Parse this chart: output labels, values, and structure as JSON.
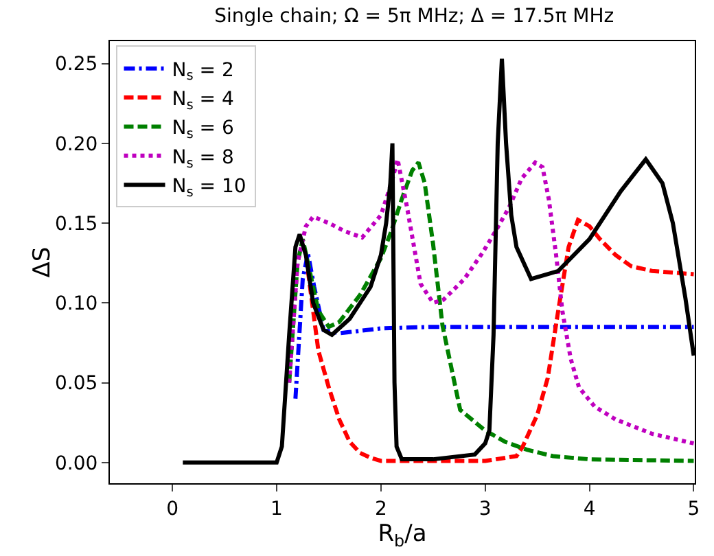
{
  "chart_data": {
    "type": "line",
    "title": "Single chain; Ω = 5π MHz; Δ = 17.5π MHz",
    "xlabel": "R$_{b}$/a",
    "ylabel": "ΔS",
    "xlim": [
      -0.6,
      5.01
    ],
    "xticks": [
      0,
      1,
      2,
      3,
      4,
      5
    ],
    "ylim": [
      -0.013,
      0.264
    ],
    "yticks": [
      {
        "value": 0,
        "label": "0.00"
      },
      {
        "value": 0.05,
        "label": "0.05"
      },
      {
        "value": 0.1,
        "label": "0.10"
      },
      {
        "value": 0.15,
        "label": "0.15"
      },
      {
        "value": 0.2,
        "label": "0.20"
      },
      {
        "value": 0.25,
        "label": "0.25"
      }
    ],
    "grid": false,
    "legend": "top left",
    "marker": "none",
    "series": [
      {
        "name": "N$_{s}$ = 2",
        "color": "#0000ff",
        "line_style": "dashdot",
        "x": [
          1.18,
          1.25,
          1.3,
          1.36,
          1.45,
          1.6,
          2.0,
          2.5,
          3.0,
          4.0,
          5.0
        ],
        "values": [
          0.04,
          0.115,
          0.131,
          0.11,
          0.083,
          0.081,
          0.084,
          0.085,
          0.085,
          0.085,
          0.085
        ]
      },
      {
        "name": "N$_{s}$ = 4",
        "color": "#ff0000",
        "line_style": "dashed",
        "x": [
          1.3,
          1.4,
          1.5,
          1.6,
          1.7,
          1.8,
          1.9,
          2.0,
          3.0,
          3.3,
          3.36,
          3.5,
          3.6,
          3.7,
          3.8,
          3.89,
          4.0,
          4.1,
          4.25,
          4.4,
          4.6,
          4.8,
          5.0
        ],
        "values": [
          0.12,
          0.07,
          0.047,
          0.027,
          0.013,
          0.006,
          0.003,
          0.001,
          0.001,
          0.004,
          0.01,
          0.03,
          0.053,
          0.095,
          0.135,
          0.152,
          0.148,
          0.14,
          0.13,
          0.123,
          0.12,
          0.119,
          0.118
        ]
      },
      {
        "name": "N$_{s}$ = 6",
        "color": "#008000",
        "line_style": "dashed",
        "x": [
          1.12,
          1.2,
          1.25,
          1.3,
          1.4,
          1.5,
          1.6,
          1.8,
          2.0,
          2.1,
          2.2,
          2.3,
          2.36,
          2.42,
          2.5,
          2.59,
          2.76,
          3.0,
          3.19,
          3.4,
          3.65,
          4.0,
          5.0
        ],
        "values": [
          0.05,
          0.125,
          0.14,
          0.125,
          0.095,
          0.085,
          0.088,
          0.105,
          0.128,
          0.145,
          0.165,
          0.183,
          0.188,
          0.175,
          0.137,
          0.086,
          0.033,
          0.02,
          0.013,
          0.008,
          0.004,
          0.002,
          0.001
        ]
      },
      {
        "name": "N$_{s}$ = 8",
        "color": "#bf00bf",
        "line_style": "dotted",
        "x": [
          1.12,
          1.2,
          1.28,
          1.35,
          1.5,
          1.65,
          1.82,
          2.0,
          2.1,
          2.16,
          2.25,
          2.38,
          2.5,
          2.6,
          2.8,
          2.97,
          3.1,
          3.23,
          3.35,
          3.48,
          3.55,
          3.61,
          3.68,
          3.74,
          3.82,
          3.9,
          4.05,
          4.25,
          4.6,
          4.93,
          5.0
        ],
        "values": [
          0.05,
          0.125,
          0.148,
          0.154,
          0.15,
          0.145,
          0.141,
          0.155,
          0.175,
          0.19,
          0.16,
          0.112,
          0.1,
          0.102,
          0.115,
          0.131,
          0.145,
          0.16,
          0.178,
          0.188,
          0.185,
          0.165,
          0.13,
          0.095,
          0.065,
          0.047,
          0.035,
          0.027,
          0.018,
          0.013,
          0.012
        ]
      },
      {
        "name": "N$_{s}$ = 10",
        "color": "#000000",
        "line_style": "solid",
        "x": [
          0.1,
          1.0,
          1.05,
          1.12,
          1.18,
          1.22,
          1.28,
          1.35,
          1.45,
          1.53,
          1.7,
          1.9,
          2.0,
          2.05,
          2.09,
          2.11,
          2.13,
          2.15,
          2.2,
          2.5,
          2.9,
          3.0,
          3.04,
          3.08,
          3.12,
          3.16,
          3.2,
          3.25,
          3.3,
          3.44,
          3.7,
          4.0,
          4.3,
          4.54,
          4.7,
          4.8,
          4.92,
          5.0
        ],
        "values": [
          0,
          0,
          0.01,
          0.08,
          0.135,
          0.143,
          0.13,
          0.1,
          0.083,
          0.08,
          0.09,
          0.11,
          0.13,
          0.15,
          0.175,
          0.2,
          0.05,
          0.01,
          0.002,
          0.002,
          0.005,
          0.012,
          0.02,
          0.08,
          0.2,
          0.253,
          0.2,
          0.155,
          0.135,
          0.115,
          0.12,
          0.14,
          0.17,
          0.19,
          0.175,
          0.15,
          0.103,
          0.067
        ]
      }
    ]
  }
}
